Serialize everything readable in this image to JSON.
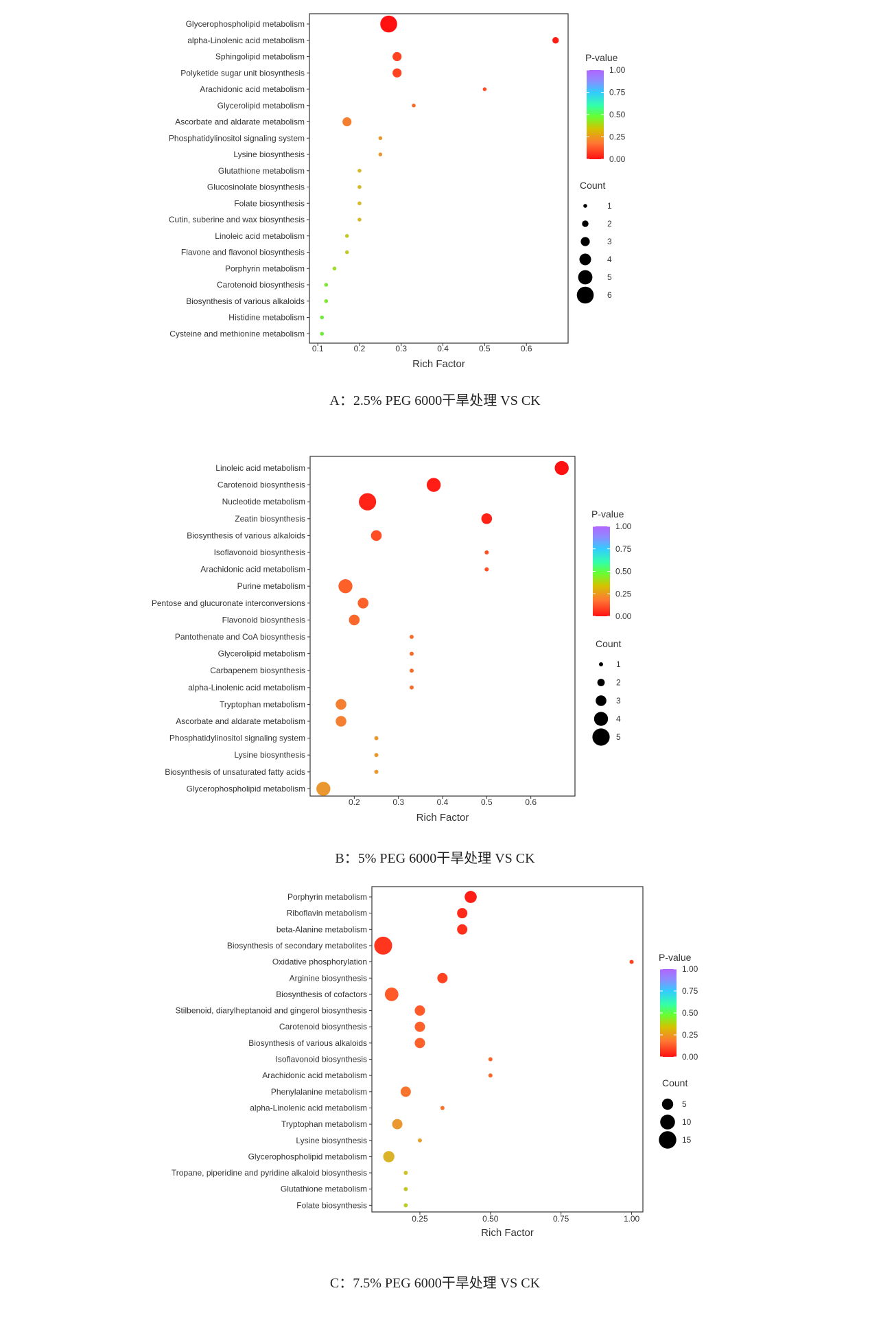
{
  "chart_data": [
    {
      "type": "scatter",
      "caption": "A：2.5% PEG 6000干旱处理 VS CK",
      "xlabel": "Rich Factor",
      "xlim": [
        0.08,
        0.7
      ],
      "xticks": [
        0.1,
        0.2,
        0.3,
        0.4,
        0.5,
        0.6
      ],
      "xtick_labels": [
        "0.1",
        "0.2",
        "0.3",
        "0.4",
        "0.5",
        "0.6"
      ],
      "color_legend": {
        "title": "P-value",
        "ticks": [
          "1.00",
          "0.75",
          "0.50",
          "0.25",
          "0.00"
        ]
      },
      "size_legend": {
        "title": "Count",
        "values": [
          1,
          2,
          3,
          4,
          5,
          6
        ]
      },
      "points": [
        {
          "term": "Glycerophospholipid metabolism",
          "x": 0.27,
          "count": 6,
          "p": 0.0
        },
        {
          "term": "alpha-Linolenic acid metabolism",
          "x": 0.67,
          "count": 2,
          "p": 0.02
        },
        {
          "term": "Sphingolipid metabolism",
          "x": 0.29,
          "count": 3,
          "p": 0.08
        },
        {
          "term": "Polyketide sugar unit biosynthesis",
          "x": 0.29,
          "count": 3,
          "p": 0.08
        },
        {
          "term": "Arachidonic acid metabolism",
          "x": 0.5,
          "count": 1,
          "p": 0.1
        },
        {
          "term": "Glycerolipid metabolism",
          "x": 0.33,
          "count": 1,
          "p": 0.15
        },
        {
          "term": "Ascorbate and aldarate metabolism",
          "x": 0.17,
          "count": 3,
          "p": 0.18
        },
        {
          "term": "Phosphatidylinositol signaling system",
          "x": 0.25,
          "count": 1,
          "p": 0.22
        },
        {
          "term": "Lysine biosynthesis",
          "x": 0.25,
          "count": 1,
          "p": 0.22
        },
        {
          "term": "Glutathione metabolism",
          "x": 0.2,
          "count": 1,
          "p": 0.28
        },
        {
          "term": "Glucosinolate biosynthesis",
          "x": 0.2,
          "count": 1,
          "p": 0.28
        },
        {
          "term": "Folate biosynthesis",
          "x": 0.2,
          "count": 1,
          "p": 0.28
        },
        {
          "term": "Cutin, suberine and wax biosynthesis",
          "x": 0.2,
          "count": 1,
          "p": 0.28
        },
        {
          "term": "Linoleic acid metabolism",
          "x": 0.17,
          "count": 1,
          "p": 0.32
        },
        {
          "term": "Flavone and flavonol biosynthesis",
          "x": 0.17,
          "count": 1,
          "p": 0.32
        },
        {
          "term": "Porphyrin metabolism",
          "x": 0.14,
          "count": 1,
          "p": 0.38
        },
        {
          "term": "Carotenoid biosynthesis",
          "x": 0.12,
          "count": 1,
          "p": 0.42
        },
        {
          "term": "Biosynthesis of various alkaloids",
          "x": 0.12,
          "count": 1,
          "p": 0.42
        },
        {
          "term": "Histidine metabolism",
          "x": 0.11,
          "count": 1,
          "p": 0.45
        },
        {
          "term": "Cysteine and methionine metabolism",
          "x": 0.11,
          "count": 1,
          "p": 0.45
        }
      ]
    },
    {
      "type": "scatter",
      "caption": "B：5% PEG 6000干旱处理 VS CK",
      "xlabel": "Rich Factor",
      "xlim": [
        0.1,
        0.7
      ],
      "xticks": [
        0.2,
        0.3,
        0.4,
        0.5,
        0.6
      ],
      "xtick_labels": [
        "0.2",
        "0.3",
        "0.4",
        "0.5",
        "0.6"
      ],
      "color_legend": {
        "title": "P-value",
        "ticks": [
          "1.00",
          "0.75",
          "0.50",
          "0.25",
          "0.00"
        ]
      },
      "size_legend": {
        "title": "Count",
        "values": [
          1,
          2,
          3,
          4,
          5
        ]
      },
      "points": [
        {
          "term": "Linoleic acid metabolism",
          "x": 0.67,
          "count": 4,
          "p": 0.0
        },
        {
          "term": "Carotenoid biosynthesis",
          "x": 0.38,
          "count": 4,
          "p": 0.02
        },
        {
          "term": "Nucleotide metabolism",
          "x": 0.23,
          "count": 5,
          "p": 0.03
        },
        {
          "term": "Zeatin biosynthesis",
          "x": 0.5,
          "count": 3,
          "p": 0.03
        },
        {
          "term": "Biosynthesis of various alkaloids",
          "x": 0.25,
          "count": 3,
          "p": 0.1
        },
        {
          "term": "Isoflavonoid biosynthesis",
          "x": 0.5,
          "count": 1,
          "p": 0.1
        },
        {
          "term": "Arachidonic acid metabolism",
          "x": 0.5,
          "count": 1,
          "p": 0.1
        },
        {
          "term": "Purine metabolism",
          "x": 0.18,
          "count": 4,
          "p": 0.13
        },
        {
          "term": "Pentose and glucuronate interconversions",
          "x": 0.22,
          "count": 3,
          "p": 0.13
        },
        {
          "term": "Flavonoid biosynthesis",
          "x": 0.2,
          "count": 3,
          "p": 0.14
        },
        {
          "term": "Pantothenate and CoA biosynthesis",
          "x": 0.33,
          "count": 1,
          "p": 0.15
        },
        {
          "term": "Glycerolipid metabolism",
          "x": 0.33,
          "count": 1,
          "p": 0.15
        },
        {
          "term": "Carbapenem biosynthesis",
          "x": 0.33,
          "count": 1,
          "p": 0.15
        },
        {
          "term": "alpha-Linolenic acid metabolism",
          "x": 0.33,
          "count": 1,
          "p": 0.15
        },
        {
          "term": "Tryptophan metabolism",
          "x": 0.17,
          "count": 3,
          "p": 0.18
        },
        {
          "term": "Ascorbate and aldarate metabolism",
          "x": 0.17,
          "count": 3,
          "p": 0.18
        },
        {
          "term": "Phosphatidylinositol signaling system",
          "x": 0.25,
          "count": 1,
          "p": 0.22
        },
        {
          "term": "Lysine biosynthesis",
          "x": 0.25,
          "count": 1,
          "p": 0.22
        },
        {
          "term": "Biosynthesis of unsaturated fatty acids",
          "x": 0.25,
          "count": 1,
          "p": 0.22
        },
        {
          "term": "Glycerophospholipid metabolism",
          "x": 0.13,
          "count": 4,
          "p": 0.22
        }
      ]
    },
    {
      "type": "scatter",
      "caption": "C：7.5% PEG 6000干旱处理 VS CK",
      "xlabel": "Rich Factor",
      "xlim": [
        0.08,
        1.04
      ],
      "xticks": [
        0.25,
        0.5,
        0.75,
        1.0
      ],
      "xtick_labels": [
        "0.25",
        "0.50",
        "0.75",
        "1.00"
      ],
      "color_legend": {
        "title": "P-value",
        "ticks": [
          "1.00",
          "0.75",
          "0.50",
          "0.25",
          "0.00"
        ]
      },
      "size_legend": {
        "title": "Count",
        "values": [
          5,
          10,
          15
        ]
      },
      "points": [
        {
          "term": "Porphyrin metabolism",
          "x": 0.43,
          "count": 6,
          "p": 0.02
        },
        {
          "term": "Riboflavin metabolism",
          "x": 0.4,
          "count": 4,
          "p": 0.04
        },
        {
          "term": "beta-Alanine metabolism",
          "x": 0.4,
          "count": 4,
          "p": 0.05
        },
        {
          "term": "Biosynthesis of secondary metabolites",
          "x": 0.12,
          "count": 16,
          "p": 0.06
        },
        {
          "term": "Oxidative phosphorylation",
          "x": 1.0,
          "count": 1,
          "p": 0.08
        },
        {
          "term": "Arginine biosynthesis",
          "x": 0.33,
          "count": 4,
          "p": 0.08
        },
        {
          "term": "Biosynthesis of cofactors",
          "x": 0.15,
          "count": 8,
          "p": 0.12
        },
        {
          "term": "Stilbenoid, diarylheptanoid and gingerol biosynthesis",
          "x": 0.25,
          "count": 4,
          "p": 0.12
        },
        {
          "term": "Carotenoid biosynthesis",
          "x": 0.25,
          "count": 4,
          "p": 0.13
        },
        {
          "term": "Biosynthesis of various alkaloids",
          "x": 0.25,
          "count": 4,
          "p": 0.13
        },
        {
          "term": "Isoflavonoid biosynthesis",
          "x": 0.5,
          "count": 1,
          "p": 0.14
        },
        {
          "term": "Arachidonic acid metabolism",
          "x": 0.5,
          "count": 1,
          "p": 0.14
        },
        {
          "term": "Phenylalanine metabolism",
          "x": 0.2,
          "count": 4,
          "p": 0.16
        },
        {
          "term": "alpha-Linolenic acid metabolism",
          "x": 0.33,
          "count": 1,
          "p": 0.16
        },
        {
          "term": "Tryptophan metabolism",
          "x": 0.17,
          "count": 4,
          "p": 0.22
        },
        {
          "term": "Lysine biosynthesis",
          "x": 0.25,
          "count": 1,
          "p": 0.24
        },
        {
          "term": "Glycerophospholipid metabolism",
          "x": 0.14,
          "count": 5,
          "p": 0.27
        },
        {
          "term": "Tropane, piperidine and pyridine alkaloid biosynthesis",
          "x": 0.2,
          "count": 1,
          "p": 0.3
        },
        {
          "term": "Glutathione metabolism",
          "x": 0.2,
          "count": 1,
          "p": 0.32
        },
        {
          "term": "Folate biosynthesis",
          "x": 0.2,
          "count": 1,
          "p": 0.33
        }
      ]
    }
  ]
}
